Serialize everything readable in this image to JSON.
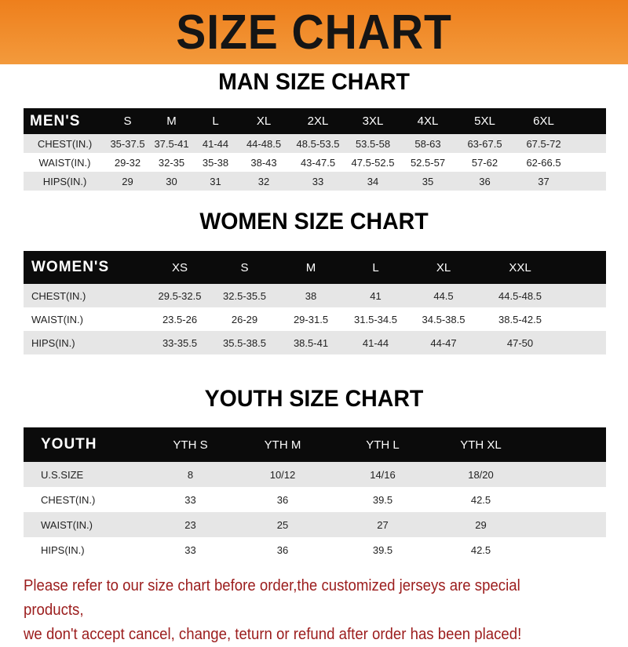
{
  "banner": "SIZE CHART",
  "men": {
    "title": "MAN SIZE CHART",
    "header": [
      "MEN'S",
      "S",
      "M",
      "L",
      "XL",
      "2XL",
      "3XL",
      "4XL",
      "5XL",
      "6XL"
    ],
    "rows": [
      [
        "CHEST(IN.)",
        "35-37.5",
        "37.5-41",
        "41-44",
        "44-48.5",
        "48.5-53.5",
        "53.5-58",
        "58-63",
        "63-67.5",
        "67.5-72"
      ],
      [
        "WAIST(IN.)",
        "29-32",
        "32-35",
        "35-38",
        "38-43",
        "43-47.5",
        "47.5-52.5",
        "52.5-57",
        "57-62",
        "62-66.5"
      ],
      [
        "HIPS(IN.)",
        "29",
        "30",
        "31",
        "32",
        "33",
        "34",
        "35",
        "36",
        "37"
      ]
    ]
  },
  "women": {
    "title": "WOMEN SIZE CHART",
    "header": [
      "WOMEN'S",
      "XS",
      "S",
      "M",
      "L",
      "XL",
      "XXL"
    ],
    "rows": [
      [
        "CHEST(IN.)",
        "29.5-32.5",
        "32.5-35.5",
        "38",
        "41",
        "44.5",
        "44.5-48.5"
      ],
      [
        "WAIST(IN.)",
        "23.5-26",
        "26-29",
        "29-31.5",
        "31.5-34.5",
        "34.5-38.5",
        "38.5-42.5"
      ],
      [
        "HIPS(IN.)",
        "33-35.5",
        "35.5-38.5",
        "38.5-41",
        "41-44",
        "44-47",
        "47-50"
      ]
    ]
  },
  "youth": {
    "title": "YOUTH SIZE CHART",
    "header": [
      "YOUTH",
      "YTH S",
      "YTH M",
      "YTH L",
      "YTH XL"
    ],
    "rows": [
      [
        "U.S.SIZE",
        "8",
        "10/12",
        "14/16",
        "18/20"
      ],
      [
        "CHEST(IN.)",
        "33",
        "36",
        "39.5",
        "42.5"
      ],
      [
        "WAIST(IN.)",
        "23",
        "25",
        "27",
        "29"
      ],
      [
        "HIPS(IN.)",
        "33",
        "36",
        "39.5",
        "42.5"
      ]
    ]
  },
  "note": [
    "Please refer to our size chart before order,the customized jerseys are special products,",
    "we don't accept cancel, change, teturn or refund after order has been placed!"
  ]
}
